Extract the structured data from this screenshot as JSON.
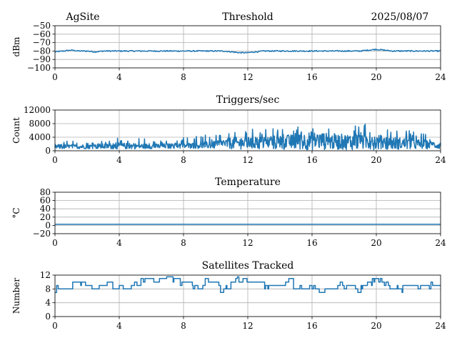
{
  "header": {
    "site": "AgSite",
    "date": "2025/08/07"
  },
  "chart_data": [
    {
      "type": "line",
      "title": "Threshold",
      "xlabel": "",
      "ylabel": "dBm",
      "xlim": [
        0,
        24
      ],
      "ylim": [
        -100,
        -50
      ],
      "xticks": [
        0,
        4,
        8,
        12,
        16,
        20,
        24
      ],
      "yticks": [
        -100,
        -90,
        -80,
        -70,
        -60,
        -50
      ],
      "ytick_labels": [
        "−100",
        "−90",
        "−80",
        "−70",
        "−60",
        "−50"
      ],
      "grid": true,
      "color": "#1f77b4",
      "series": [
        {
          "x": [
            0,
            0.5,
            1,
            1.5,
            2,
            2.5,
            3,
            3.5,
            4,
            5,
            6,
            7,
            8,
            9,
            10,
            10.5,
            11,
            11.5,
            12,
            12.5,
            13,
            14,
            15,
            16,
            17,
            18,
            19,
            19.5,
            20,
            20.5,
            21,
            22,
            23,
            24
          ],
          "y": [
            -81,
            -80,
            -79,
            -80,
            -80,
            -81,
            -80,
            -80,
            -80,
            -80,
            -80,
            -80,
            -80,
            -80,
            -80,
            -80,
            -81,
            -82,
            -82,
            -81,
            -80,
            -80,
            -80,
            -80,
            -80,
            -80,
            -80,
            -79,
            -78,
            -79,
            -80,
            -80,
            -80,
            -80
          ]
        }
      ]
    },
    {
      "type": "line",
      "title": "Triggers/sec",
      "xlabel": "",
      "ylabel": "Count",
      "xlim": [
        0,
        24
      ],
      "ylim": [
        0,
        12000
      ],
      "xticks": [
        0,
        4,
        8,
        12,
        16,
        20,
        24
      ],
      "yticks": [
        0,
        4000,
        8000,
        12000
      ],
      "ytick_labels": [
        "0",
        "4000",
        "8000",
        "12000"
      ],
      "grid": true,
      "color": "#1f77b4",
      "series": [
        {
          "x": [
            0,
            2,
            4,
            6,
            8,
            10,
            11,
            12,
            13,
            14,
            15,
            16,
            17,
            18,
            19,
            20,
            21,
            22,
            23,
            24
          ],
          "y": [
            1500,
            1500,
            1800,
            1600,
            1800,
            2200,
            3000,
            3000,
            3200,
            3400,
            3600,
            4200,
            3800,
            3600,
            4000,
            3600,
            3000,
            2800,
            2400,
            2000
          ],
          "env_low": [
            500,
            600,
            500,
            600,
            700,
            600,
            500,
            400,
            400,
            300,
            300,
            200,
            300,
            300,
            200,
            300,
            400,
            400,
            500,
            600
          ],
          "env_high": [
            3000,
            2800,
            4000,
            3600,
            4000,
            5000,
            6500,
            6500,
            7000,
            6500,
            7000,
            8500,
            7500,
            7000,
            8000,
            8000,
            7000,
            6000,
            5000,
            4000
          ]
        }
      ]
    },
    {
      "type": "line",
      "title": "Temperature",
      "xlabel": "",
      "ylabel": "°C",
      "xlim": [
        0,
        24
      ],
      "ylim": [
        -20,
        80
      ],
      "xticks": [
        0,
        4,
        8,
        12,
        16,
        20,
        24
      ],
      "yticks": [
        -20,
        0,
        20,
        40,
        60,
        80
      ],
      "ytick_labels": [
        "−20",
        "0",
        "20",
        "40",
        "60",
        "80"
      ],
      "grid": true,
      "color": "#1f77b4",
      "series": [
        {
          "x": [
            0,
            4,
            8,
            12,
            16,
            20,
            24
          ],
          "y": [
            2.5,
            2.5,
            2.5,
            2.5,
            2.5,
            2.5,
            2.5
          ]
        }
      ]
    },
    {
      "type": "line",
      "title": "Satellites Tracked",
      "xlabel": "",
      "ylabel": "Number",
      "xlim": [
        0,
        24
      ],
      "ylim": [
        0,
        12
      ],
      "xticks": [
        0,
        4,
        8,
        12,
        16,
        20,
        24
      ],
      "yticks": [
        0,
        4,
        8,
        12
      ],
      "ytick_labels": [
        "0",
        "4",
        "8",
        "12"
      ],
      "grid": true,
      "color": "#1f77b4",
      "series": [
        {
          "x": [
            0,
            0.8,
            1.2,
            2,
            2.5,
            3,
            3.5,
            4,
            4.5,
            5,
            5.5,
            6,
            6.5,
            7,
            7.5,
            8,
            8.5,
            9,
            9.5,
            10,
            10.5,
            11,
            11.5,
            12,
            12.5,
            13,
            13.5,
            14,
            14.5,
            15,
            15.5,
            16,
            16.5,
            17,
            17.5,
            18,
            18.5,
            19,
            19.5,
            20,
            20.5,
            21,
            21.5,
            22,
            22.5,
            23,
            23.5,
            24
          ],
          "y": [
            8,
            8,
            9,
            9,
            8,
            9,
            8,
            8,
            8,
            9,
            10,
            11,
            10,
            11,
            11,
            10,
            9,
            9,
            10,
            9,
            8,
            10,
            11,
            10,
            10,
            9,
            9,
            9,
            10,
            9,
            8,
            9,
            7,
            8,
            9,
            8,
            9,
            8,
            10,
            11,
            9,
            8,
            8,
            9,
            9,
            9,
            9,
            8
          ]
        }
      ]
    }
  ]
}
